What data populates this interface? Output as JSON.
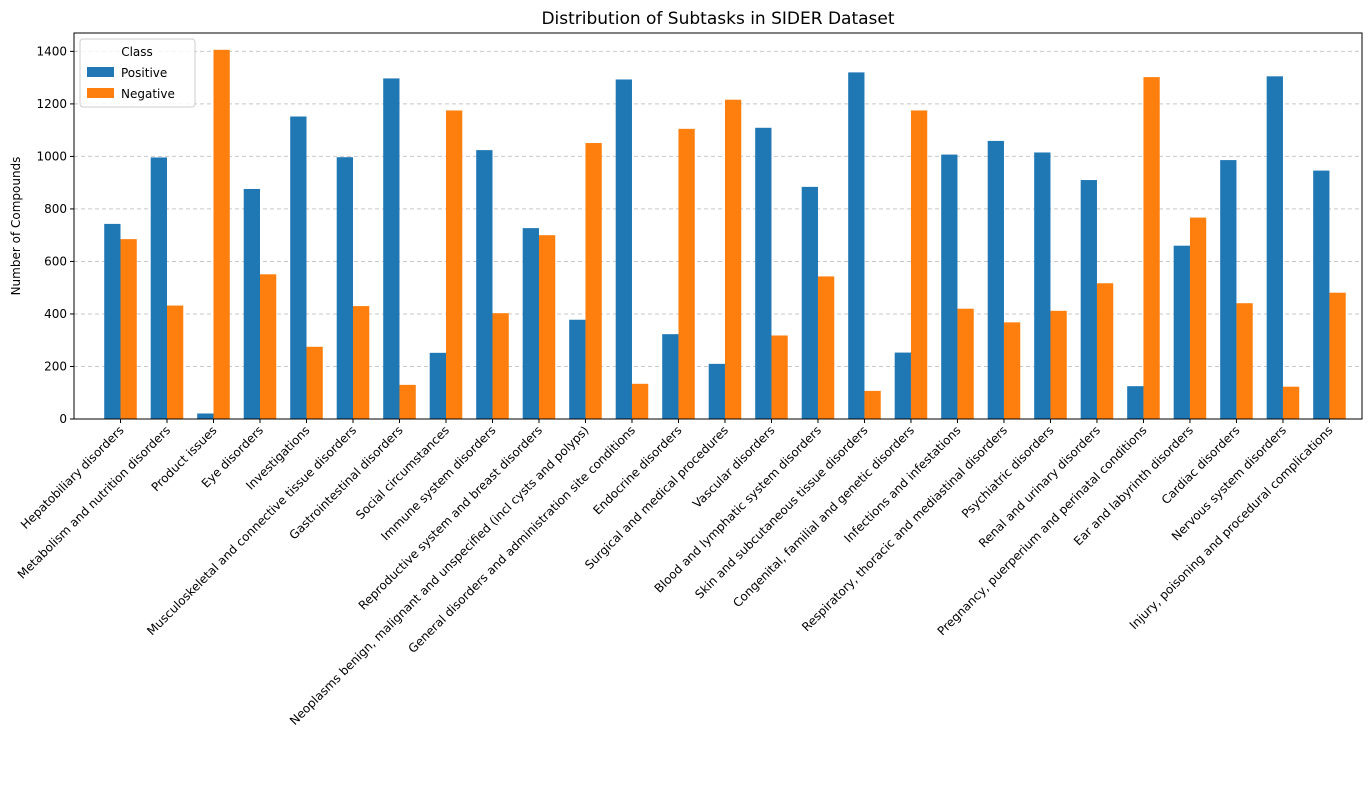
{
  "chart_data": {
    "type": "bar",
    "title": "Distribution of Subtasks in SIDER Dataset",
    "xlabel": "",
    "ylabel": "Number of Compounds",
    "ylim": [
      0,
      1470
    ],
    "yticks": [
      0,
      200,
      400,
      600,
      800,
      1000,
      1200,
      1400
    ],
    "grid": "horizontal dashed",
    "legend": {
      "title": "Class",
      "placement": "top-left"
    },
    "categories": [
      "Hepatobiliary disorders",
      "Metabolism and nutrition disorders",
      "Product issues",
      "Eye disorders",
      "Investigations",
      "Musculoskeletal and connective tissue disorders",
      "Gastrointestinal disorders",
      "Social circumstances",
      "Immune system disorders",
      "Reproductive system and breast disorders",
      "Neoplasms benign, malignant and unspecified (incl cysts and polyps)",
      "General disorders and administration site conditions",
      "Endocrine disorders",
      "Surgical and medical procedures",
      "Vascular disorders",
      "Blood and lymphatic system disorders",
      "Skin and subcutaneous tissue disorders",
      "Congenital, familial and genetic disorders",
      "Infections and infestations",
      "Respiratory, thoracic and mediastinal disorders",
      "Psychiatric disorders",
      "Renal and urinary disorders",
      "Pregnancy, puerperium and perinatal conditions",
      "Ear and labyrinth disorders",
      "Cardiac disorders",
      "Nervous system disorders",
      "Injury, poisoning and procedural complications"
    ],
    "series": [
      {
        "name": "Positive",
        "color": "#1f77b4",
        "values": [
          743,
          996,
          21,
          876,
          1152,
          997,
          1297,
          252,
          1024,
          727,
          378,
          1293,
          323,
          210,
          1109,
          884,
          1320,
          253,
          1007,
          1059,
          1015,
          910,
          125,
          660,
          986,
          1305,
          946
        ]
      },
      {
        "name": "Negative",
        "color": "#ff7f0e",
        "values": [
          685,
          432,
          1406,
          551,
          275,
          430,
          130,
          1175,
          403,
          700,
          1051,
          134,
          1105,
          1216,
          318,
          543,
          107,
          1175,
          420,
          368,
          412,
          517,
          1302,
          767,
          441,
          123,
          481
        ]
      }
    ]
  }
}
